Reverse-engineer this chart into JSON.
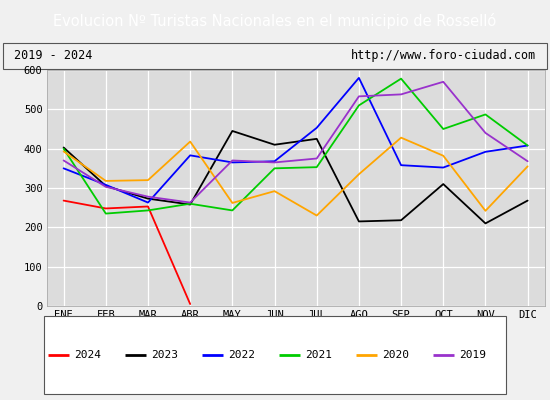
{
  "title": "Evolucion Nº Turistas Nacionales en el municipio de Rosselló",
  "title_bg": "#4c7fc4",
  "subtitle_left": "2019 - 2024",
  "subtitle_right": "http://www.foro-ciudad.com",
  "months": [
    "ENE",
    "FEB",
    "MAR",
    "ABR",
    "MAY",
    "JUN",
    "JUL",
    "AGO",
    "SEP",
    "OCT",
    "NOV",
    "DIC"
  ],
  "ylim": [
    0,
    600
  ],
  "yticks": [
    0,
    100,
    200,
    300,
    400,
    500,
    600
  ],
  "series": {
    "2024": {
      "color": "#ff0000",
      "values": [
        268,
        248,
        253,
        5,
        null,
        null,
        null,
        null,
        null,
        null,
        null,
        null
      ]
    },
    "2023": {
      "color": "#000000",
      "values": [
        403,
        305,
        273,
        258,
        445,
        410,
        425,
        215,
        218,
        310,
        210,
        268
      ]
    },
    "2022": {
      "color": "#0000ff",
      "values": [
        350,
        308,
        263,
        383,
        365,
        368,
        453,
        580,
        358,
        352,
        392,
        408
      ]
    },
    "2021": {
      "color": "#00cc00",
      "values": [
        400,
        235,
        243,
        260,
        243,
        350,
        353,
        510,
        578,
        450,
        487,
        408
      ]
    },
    "2020": {
      "color": "#ffa500",
      "values": [
        393,
        318,
        320,
        418,
        262,
        292,
        230,
        335,
        428,
        382,
        242,
        355
      ]
    },
    "2019": {
      "color": "#9932cc",
      "values": [
        370,
        303,
        278,
        263,
        370,
        365,
        375,
        533,
        538,
        570,
        440,
        368
      ]
    }
  },
  "legend_order": [
    "2024",
    "2023",
    "2022",
    "2021",
    "2020",
    "2019"
  ],
  "bg_plot": "#dcdcdc",
  "bg_figure": "#f0f0f0",
  "grid_color": "#ffffff"
}
